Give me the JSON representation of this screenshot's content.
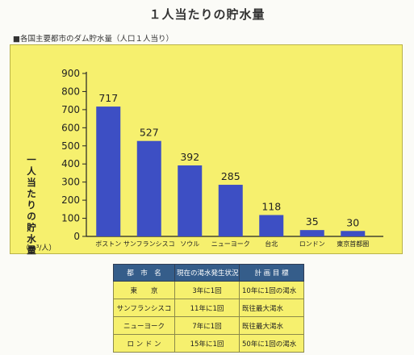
{
  "title": "１人当たりの貯水量",
  "section_heading": "■各国主要都市のダム貯水量（人口１人当り）",
  "chart_data": {
    "type": "bar",
    "categories": [
      "ボストン",
      "サンフランシスコ",
      "ソウル",
      "ニューヨーク",
      "台北",
      "ロンドン",
      "東京首都圏"
    ],
    "values": [
      717,
      527,
      392,
      285,
      118,
      35,
      30
    ],
    "ylabel": "一人当たりの貯水量",
    "yunit": "（m³/人）",
    "ylim": [
      0,
      900
    ],
    "yticks": [
      0,
      100,
      200,
      300,
      400,
      500,
      600,
      700,
      800,
      900
    ],
    "bar_color": "#3d4fc4",
    "grid": false
  },
  "table": {
    "headers": [
      "都　市　名",
      "現在の渇水発生状況",
      "計 画 目 標"
    ],
    "rows": [
      [
        "東　　京",
        "3年に1回",
        "10年に1回の渇水"
      ],
      [
        "サンフランシスコ",
        "11年に1回",
        "既往最大渇水"
      ],
      [
        "ニューヨーク",
        "7年に1回",
        "既往最大渇水"
      ],
      [
        "ロ ン ド ン",
        "15年に1回",
        "50年に1回の渇水"
      ]
    ]
  }
}
